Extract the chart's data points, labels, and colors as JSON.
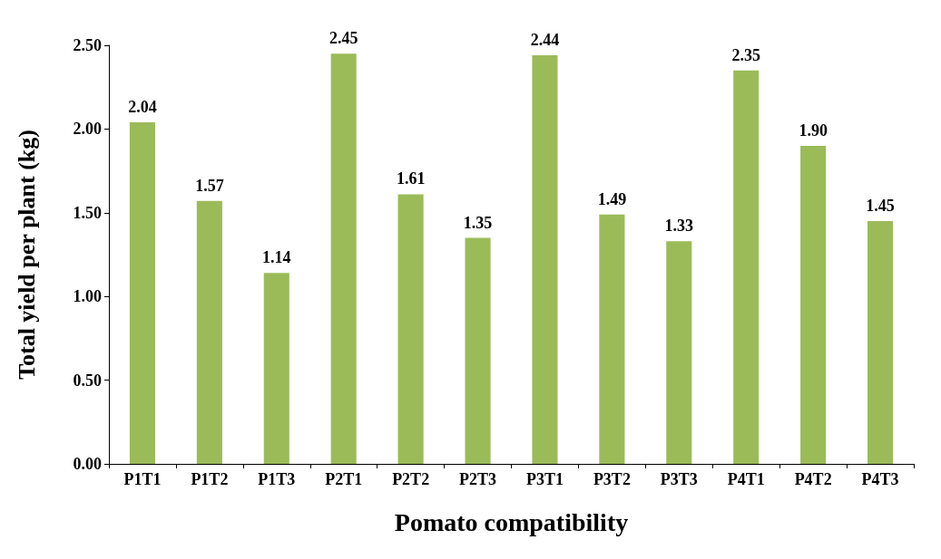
{
  "chart_data": {
    "type": "bar",
    "xlabel": "Pomato compatibility",
    "ylabel": "Total yield per plant (kg)",
    "categories": [
      "P1T1",
      "P1T2",
      "P1T3",
      "P2T1",
      "P2T2",
      "P2T3",
      "P3T1",
      "P3T2",
      "P3T3",
      "P4T1",
      "P4T2",
      "P4T3"
    ],
    "values": [
      2.04,
      1.57,
      1.14,
      2.45,
      1.61,
      1.35,
      2.44,
      1.49,
      1.33,
      2.35,
      1.9,
      1.45
    ],
    "value_labels": [
      "2.04",
      "1.57",
      "1.14",
      "2.45",
      "1.61",
      "1.35",
      "2.44",
      "1.49",
      "1.33",
      "2.35",
      "1.90",
      "1.45"
    ],
    "color": "#9bbb59",
    "ylim": [
      0,
      2.5
    ],
    "yticks": [
      {
        "value": 0,
        "label": "0.00"
      },
      {
        "value": 0.5,
        "label": "0.50"
      },
      {
        "value": 1,
        "label": "1.00"
      },
      {
        "value": 1.5,
        "label": "1.50"
      },
      {
        "value": 2,
        "label": "2.00"
      },
      {
        "value": 2.5,
        "label": "2.50"
      }
    ],
    "grid": false
  }
}
